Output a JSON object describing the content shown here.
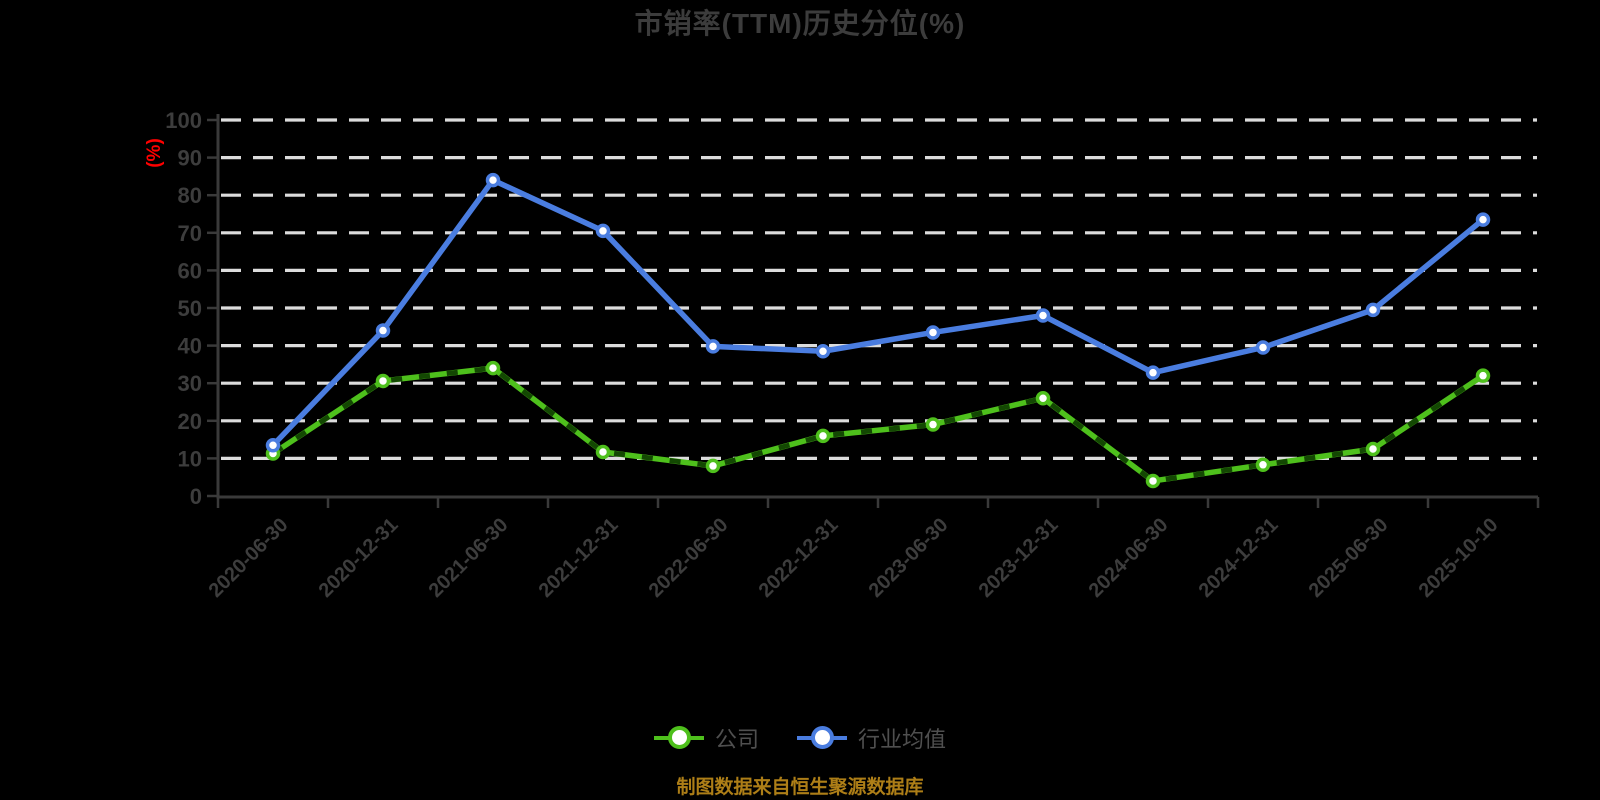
{
  "title": "市销率(TTM)历史分位(%)",
  "y_axis_unit": "(%)",
  "source_note": "制图数据来自恒生聚源数据库",
  "legend": [
    {
      "label": "公司",
      "color_key": "company_line"
    },
    {
      "label": "行业均值",
      "color_key": "industry_line"
    }
  ],
  "colors": {
    "background": "#000000",
    "title_text": "#3c3c3c",
    "axis_line": "#3a3a3a",
    "axis_label": "#3d3d3d",
    "gridline": "#dcdcdc",
    "unit_label": "#ff0000",
    "legend_text": "#4f4f4f",
    "source_text": "#ad7e17",
    "company_line": "#4ec01c",
    "company_dash_overlay": "#0d3b00",
    "industry_line": "#4a7de0",
    "marker_fill": "#ffffff"
  },
  "chart_data": {
    "type": "line",
    "title": "市销率(TTM)历史分位(%)",
    "ylabel": "(%)",
    "categories": [
      "2020-06-30",
      "2020-12-31",
      "2021-06-30",
      "2021-12-31",
      "2022-06-30",
      "2022-12-31",
      "2023-06-30",
      "2023-12-31",
      "2024-06-30",
      "2024-12-31",
      "2025-06-30",
      "2025-10-10"
    ],
    "series": [
      {
        "name": "公司",
        "values": [
          11.3,
          30.6,
          34,
          11.7,
          8,
          16,
          19,
          26,
          4,
          8.3,
          12.5,
          32
        ]
      },
      {
        "name": "行业均值",
        "values": [
          13.5,
          44,
          84,
          70.5,
          39.8,
          38.5,
          43.5,
          48,
          32.8,
          39.5,
          49.5,
          73.5
        ]
      }
    ],
    "ylim": [
      0,
      100
    ],
    "y_tick_step": 10,
    "grid": "horizontal-dashed",
    "legend_position": "bottom",
    "marker": "circle-white-fill",
    "x_label_rotation": -45
  }
}
